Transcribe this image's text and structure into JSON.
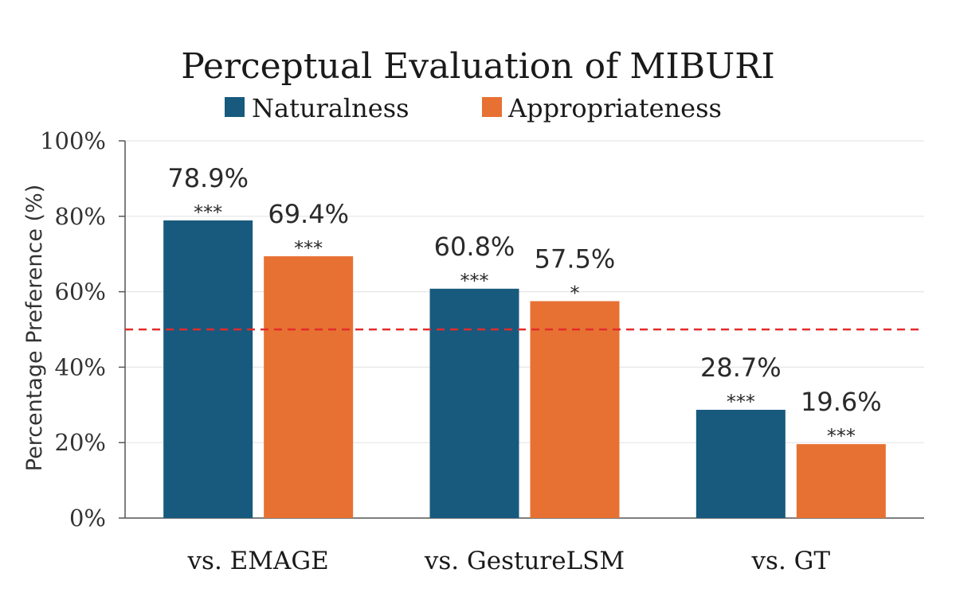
{
  "chart_data": {
    "type": "bar",
    "title": "Perceptual Evaluation of  MIBURI",
    "ylabel": "Percentage Preference (%)",
    "xlabel": "",
    "categories": [
      "vs. EMAGE",
      "vs. GestureLSM",
      "vs. GT"
    ],
    "series": [
      {
        "name": "Naturalness",
        "color": "#175a7d",
        "values": [
          78.9,
          60.8,
          28.7
        ],
        "labels": [
          "78.9%",
          "60.8%",
          "28.7%"
        ],
        "significance": [
          "***",
          "***",
          "***"
        ]
      },
      {
        "name": "Appropriateness",
        "color": "#e77132",
        "values": [
          69.4,
          57.5,
          19.6
        ],
        "labels": [
          "69.4%",
          "57.5%",
          "19.6%"
        ],
        "significance": [
          "***",
          "*",
          "***"
        ]
      }
    ],
    "ylim": [
      0,
      100
    ],
    "yticks": [
      0,
      20,
      40,
      60,
      80,
      100
    ],
    "ytick_labels": [
      "0%",
      "20%",
      "40%",
      "60%",
      "80%",
      "100%"
    ],
    "reference_line": {
      "value": 50,
      "color": "#e32b2b",
      "style": "dashed"
    },
    "grid": true,
    "legend_position": "top-center"
  }
}
